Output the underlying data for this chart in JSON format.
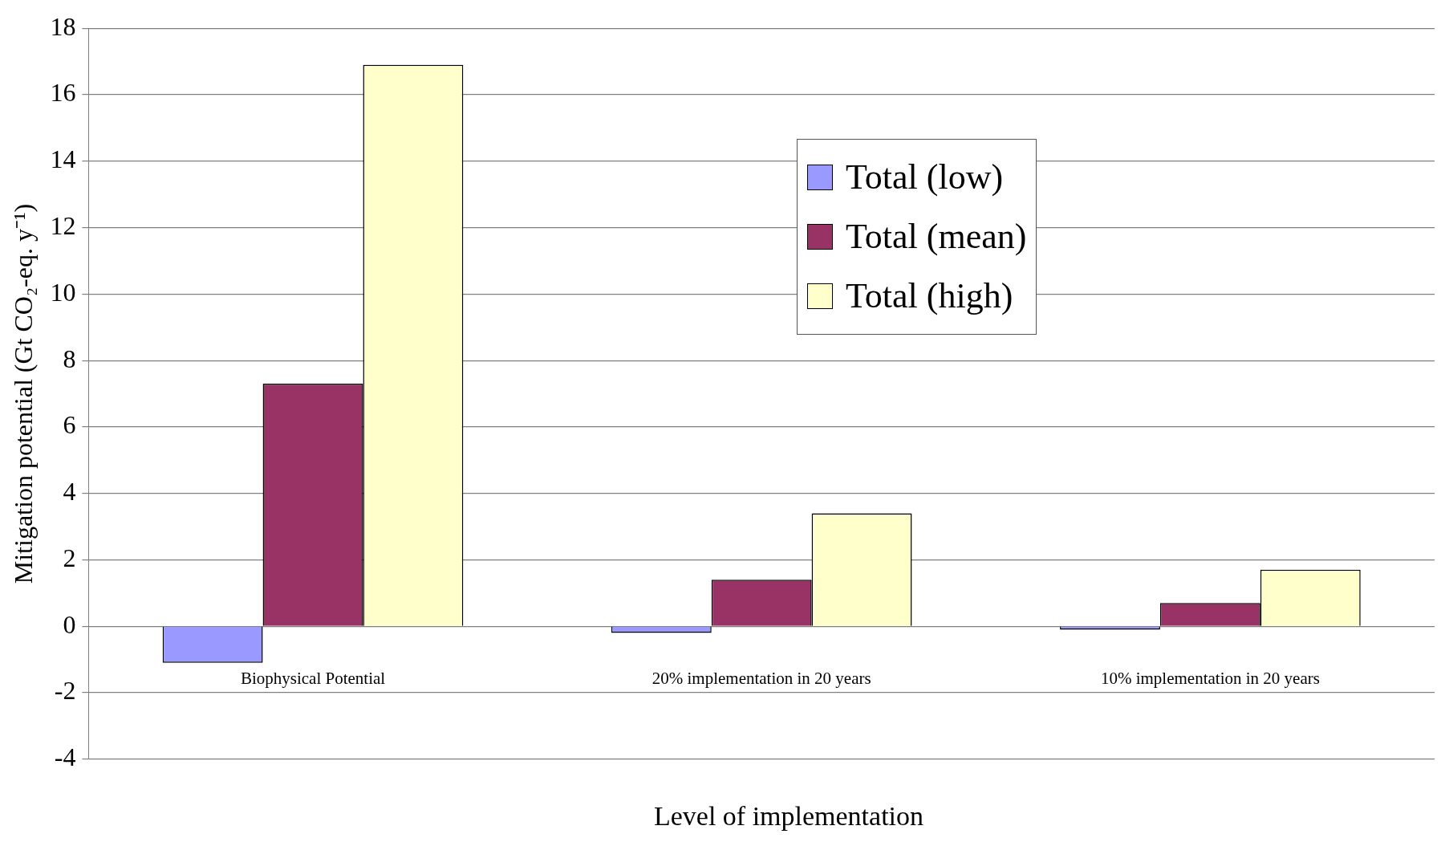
{
  "chart_data": {
    "type": "bar",
    "xlabel": "Level of implementation",
    "ylabel": "Mitigation potential (Gt CO₂-eq. y⁻¹)",
    "categories": [
      "Biophysical Potential",
      "20% implementation in 20 years",
      "10% implementation in 20 years"
    ],
    "series": [
      {
        "name": "Total (low)",
        "color": "#9999ff",
        "values": [
          -1.1,
          -0.2,
          -0.1
        ]
      },
      {
        "name": "Total (mean)",
        "color": "#993366",
        "values": [
          7.3,
          1.4,
          0.7
        ]
      },
      {
        "name": "Total (high)",
        "color": "#ffffcc",
        "values": [
          16.9,
          3.4,
          1.7
        ]
      }
    ],
    "ylim": [
      -4,
      18
    ],
    "yticks": [
      -4,
      -2,
      0,
      2,
      4,
      6,
      8,
      10,
      12,
      14,
      16,
      18
    ],
    "grid": "y",
    "legend": "top right"
  }
}
